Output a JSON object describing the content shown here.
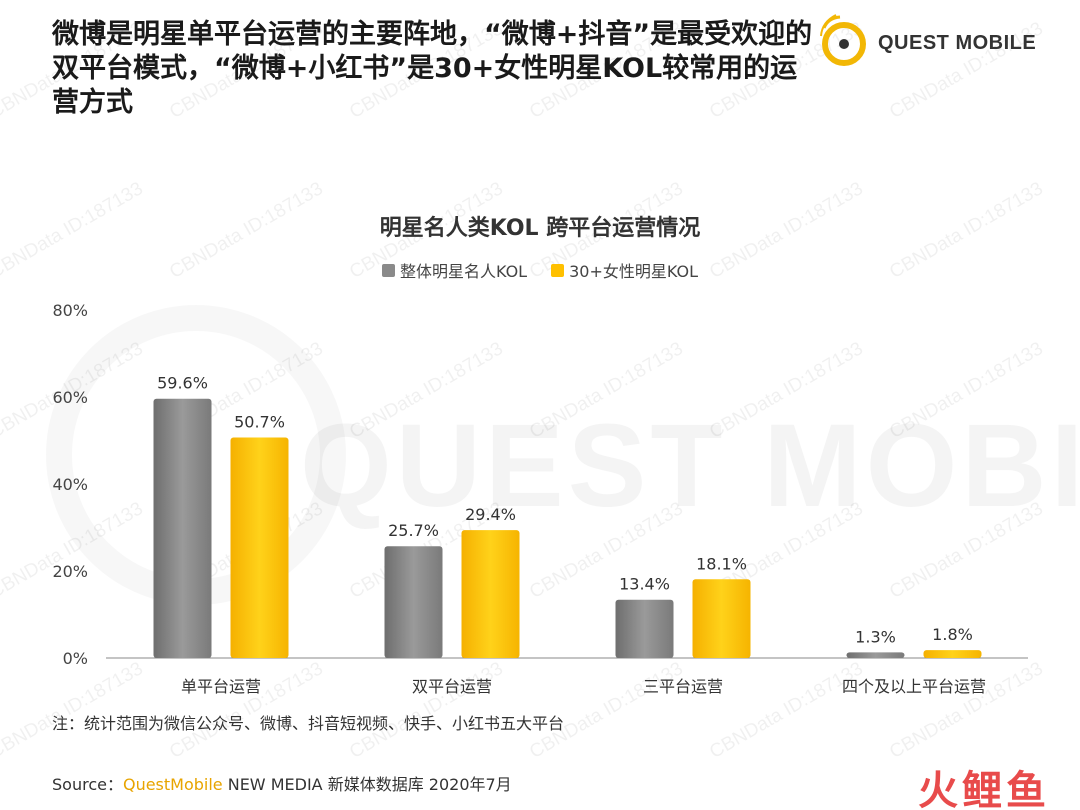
{
  "header": {
    "title": "微博是明星单平台运营的主要阵地，“微博+抖音”是最受欢迎的双平台模式，“微博+小红书”是30+女性明星KOL较常用的运营方式",
    "logo_text": "QUEST MOBILE"
  },
  "watermark": {
    "big_text": "QUEST MOBILE",
    "tile_text": "CBNData ID:187133"
  },
  "colors": {
    "series1": "#8a8a8a",
    "series2": "#ffc000",
    "logo_accent": "#f2b705"
  },
  "chart_data": {
    "type": "bar",
    "title": "明星名人类KOL 跨平台运营情况",
    "categories": [
      "单平台运营",
      "双平台运营",
      "三平台运营",
      "四个及以上平台运营"
    ],
    "series": [
      {
        "name": "整体明星名人KOL",
        "values": [
          59.6,
          25.7,
          13.4,
          1.3
        ],
        "labels": [
          "59.6%",
          "25.7%",
          "13.4%",
          "1.3%"
        ]
      },
      {
        "name": "30+女性明星KOL",
        "values": [
          50.7,
          29.4,
          18.1,
          1.8
        ],
        "labels": [
          "50.7%",
          "29.4%",
          "18.1%",
          "1.8%"
        ]
      }
    ],
    "y_ticks": [
      "0%",
      "20%",
      "40%",
      "60%",
      "80%"
    ],
    "y_tick_values": [
      0,
      20,
      40,
      60,
      80
    ],
    "ylim": [
      0,
      80
    ],
    "legend_position": "top-center",
    "grid": false
  },
  "footer": {
    "note": "注：统计范围为微信公众号、微博、抖音短视频、快手、小红书五大平台",
    "source_prefix": "Source：",
    "source_brand": "QuestMobile",
    "source_rest": " NEW MEDIA 新媒体数据库 2020年7月",
    "corner_logo": "火鲤鱼"
  }
}
